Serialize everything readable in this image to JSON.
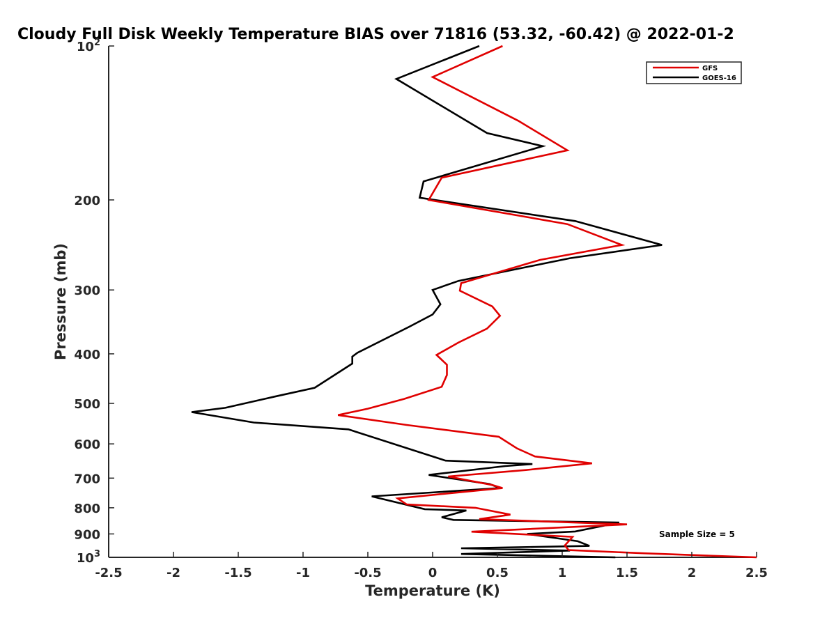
{
  "chart_data": {
    "type": "line",
    "title": "Cloudy Full Disk Weekly Temperature BIAS over 71816 (53.32, -60.42) @ 2022-01-2",
    "xlabel": "Temperature (K)",
    "ylabel": "Pressure (mb)",
    "xlim": [
      -2.5,
      2.5
    ],
    "ylim": [
      100,
      1000
    ],
    "y_scale": "log",
    "y_reversed": true,
    "x_ticks": [
      -2.5,
      -2,
      -1.5,
      -1,
      -0.5,
      0,
      0.5,
      1,
      1.5,
      2,
      2.5
    ],
    "x_tick_labels": [
      "-2.5",
      "-2",
      "-1.5",
      "-1",
      "-0.5",
      "0",
      "0.5",
      "1",
      "1.5",
      "2",
      "2.5"
    ],
    "y_ticks": [
      100,
      200,
      300,
      400,
      500,
      600,
      700,
      800,
      900,
      1000
    ],
    "y_tick_labels": [
      {
        "base": "10",
        "exp": "2"
      },
      {
        "base": "200",
        "exp": ""
      },
      {
        "base": "300",
        "exp": ""
      },
      {
        "base": "400",
        "exp": ""
      },
      {
        "base": "500",
        "exp": ""
      },
      {
        "base": "600",
        "exp": ""
      },
      {
        "base": "700",
        "exp": ""
      },
      {
        "base": "800",
        "exp": ""
      },
      {
        "base": "900",
        "exp": ""
      },
      {
        "base": "10",
        "exp": "3"
      }
    ],
    "legend_position": "top-right",
    "grid": false,
    "annotation": "Sample Size = 5",
    "series": [
      {
        "name": "GFS",
        "color": "#e00000",
        "points": [
          [
            0.54,
            100
          ],
          [
            0.0,
            115
          ],
          [
            0.66,
            140
          ],
          [
            1.04,
            160
          ],
          [
            0.07,
            181
          ],
          [
            -0.03,
            200
          ],
          [
            1.04,
            223
          ],
          [
            1.46,
            245
          ],
          [
            0.83,
            262
          ],
          [
            0.22,
            291
          ],
          [
            0.21,
            301
          ],
          [
            0.46,
            323
          ],
          [
            0.52,
            337
          ],
          [
            0.42,
            357
          ],
          [
            0.2,
            380
          ],
          [
            0.03,
            402
          ],
          [
            0.11,
            420
          ],
          [
            0.11,
            440
          ],
          [
            0.07,
            464
          ],
          [
            -0.22,
            490
          ],
          [
            -0.5,
            512
          ],
          [
            -0.73,
            527
          ],
          [
            -0.2,
            551
          ],
          [
            0.51,
            581
          ],
          [
            0.65,
            612
          ],
          [
            0.79,
            635
          ],
          [
            1.23,
            655
          ],
          [
            0.72,
            675
          ],
          [
            0.12,
            695
          ],
          [
            0.46,
            722
          ],
          [
            0.54,
            732
          ],
          [
            -0.27,
            767
          ],
          [
            -0.2,
            788
          ],
          [
            0.33,
            800
          ],
          [
            0.6,
            825
          ],
          [
            0.36,
            842
          ],
          [
            1.5,
            862
          ],
          [
            0.3,
            891
          ],
          [
            1.08,
            912
          ],
          [
            1.02,
            948
          ],
          [
            1.05,
            968
          ],
          [
            1.63,
            982
          ],
          [
            2.5,
            1000
          ]
        ]
      },
      {
        "name": "GOES-16",
        "color": "#000000",
        "points": [
          [
            0.36,
            100
          ],
          [
            -0.28,
            116
          ],
          [
            0.42,
            148
          ],
          [
            0.85,
            157
          ],
          [
            -0.07,
            184
          ],
          [
            -0.1,
            198
          ],
          [
            1.1,
            220
          ],
          [
            1.77,
            245
          ],
          [
            1.06,
            260
          ],
          [
            0.2,
            288
          ],
          [
            0.0,
            300
          ],
          [
            0.06,
            320
          ],
          [
            0.0,
            335
          ],
          [
            -0.18,
            354
          ],
          [
            -0.58,
            398
          ],
          [
            -0.62,
            405
          ],
          [
            -0.62,
            418
          ],
          [
            -0.91,
            466
          ],
          [
            -1.22,
            485
          ],
          [
            -1.6,
            510
          ],
          [
            -1.86,
            520
          ],
          [
            -1.38,
            545
          ],
          [
            -0.65,
            562
          ],
          [
            -0.3,
            600
          ],
          [
            0.1,
            647
          ],
          [
            0.77,
            657
          ],
          [
            0.56,
            663
          ],
          [
            -0.03,
            690
          ],
          [
            0.44,
            719
          ],
          [
            0.52,
            732
          ],
          [
            -0.47,
            760
          ],
          [
            -0.06,
            805
          ],
          [
            0.26,
            810
          ],
          [
            0.07,
            835
          ],
          [
            0.16,
            845
          ],
          [
            1.44,
            855
          ],
          [
            1.1,
            890
          ],
          [
            0.73,
            900
          ],
          [
            1.12,
            930
          ],
          [
            1.21,
            950
          ],
          [
            0.22,
            960
          ],
          [
            1.06,
            970
          ],
          [
            0.22,
            985
          ],
          [
            1.41,
            1000
          ]
        ]
      }
    ]
  }
}
